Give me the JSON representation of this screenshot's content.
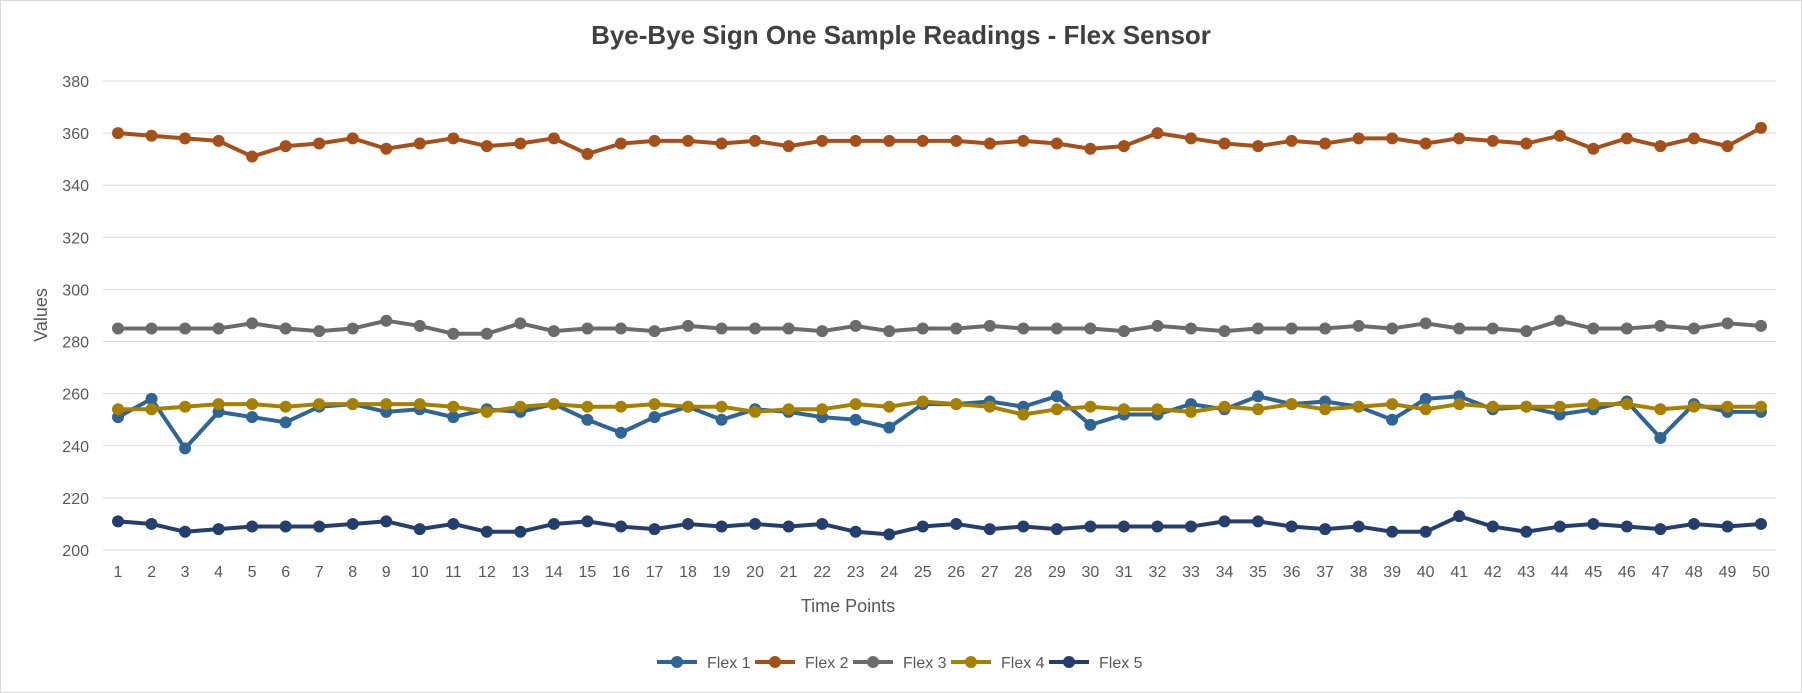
{
  "chart_data": {
    "type": "line",
    "title": "Bye-Bye Sign One Sample Readings - Flex Sensor",
    "xlabel": "Time Points",
    "ylabel": "Values",
    "ylim": [
      200,
      380
    ],
    "y_ticks": [
      200,
      220,
      240,
      260,
      280,
      300,
      320,
      340,
      360,
      380
    ],
    "grid": true,
    "legend_position": "bottom",
    "x": [
      1,
      2,
      3,
      4,
      5,
      6,
      7,
      8,
      9,
      10,
      11,
      12,
      13,
      14,
      15,
      16,
      17,
      18,
      19,
      20,
      21,
      22,
      23,
      24,
      25,
      26,
      27,
      28,
      29,
      30,
      31,
      32,
      33,
      34,
      35,
      36,
      37,
      38,
      39,
      40,
      41,
      42,
      43,
      44,
      45,
      46,
      47,
      48,
      49,
      50
    ],
    "series": [
      {
        "name": "Flex 1",
        "color": "#2e6496",
        "values": [
          251,
          258,
          239,
          253,
          251,
          249,
          255,
          256,
          253,
          254,
          251,
          254,
          253,
          256,
          250,
          245,
          251,
          255,
          250,
          254,
          253,
          251,
          250,
          247,
          256,
          256,
          257,
          255,
          259,
          248,
          252,
          252,
          256,
          254,
          259,
          256,
          257,
          255,
          250,
          258,
          259,
          254,
          255,
          252,
          254,
          257,
          243,
          256,
          253,
          253
        ]
      },
      {
        "name": "Flex 2",
        "color": "#a5501b",
        "values": [
          360,
          359,
          358,
          357,
          351,
          355,
          356,
          358,
          354,
          356,
          358,
          355,
          356,
          358,
          352,
          356,
          357,
          357,
          356,
          357,
          355,
          357,
          357,
          357,
          357,
          357,
          356,
          357,
          356,
          354,
          355,
          360,
          358,
          356,
          355,
          357,
          356,
          358,
          358,
          356,
          358,
          357,
          356,
          359,
          354,
          358,
          355,
          358,
          355,
          362
        ]
      },
      {
        "name": "Flex 3",
        "color": "#6b6b6b",
        "values": [
          285,
          285,
          285,
          285,
          287,
          285,
          284,
          285,
          288,
          286,
          283,
          283,
          287,
          284,
          285,
          285,
          284,
          286,
          285,
          285,
          285,
          284,
          286,
          284,
          285,
          285,
          286,
          285,
          285,
          285,
          284,
          286,
          285,
          284,
          285,
          285,
          285,
          286,
          285,
          287,
          285,
          285,
          284,
          288,
          285,
          285,
          286,
          285,
          287,
          286
        ]
      },
      {
        "name": "Flex 4",
        "color": "#a88000",
        "values": [
          254,
          254,
          255,
          256,
          256,
          255,
          256,
          256,
          256,
          256,
          255,
          253,
          255,
          256,
          255,
          255,
          256,
          255,
          255,
          253,
          254,
          254,
          256,
          255,
          257,
          256,
          255,
          252,
          254,
          255,
          254,
          254,
          253,
          255,
          254,
          256,
          254,
          255,
          256,
          254,
          256,
          255,
          255,
          255,
          256,
          256,
          254,
          255,
          255,
          255
        ]
      },
      {
        "name": "Flex 5",
        "color": "#243f6e",
        "values": [
          211,
          210,
          207,
          208,
          209,
          209,
          209,
          210,
          211,
          208,
          210,
          207,
          207,
          210,
          211,
          209,
          208,
          210,
          209,
          210,
          209,
          210,
          207,
          206,
          209,
          210,
          208,
          209,
          208,
          209,
          209,
          209,
          209,
          211,
          211,
          209,
          208,
          209,
          207,
          207,
          213,
          209,
          207,
          209,
          210,
          209,
          208,
          210,
          209,
          210
        ]
      }
    ]
  }
}
